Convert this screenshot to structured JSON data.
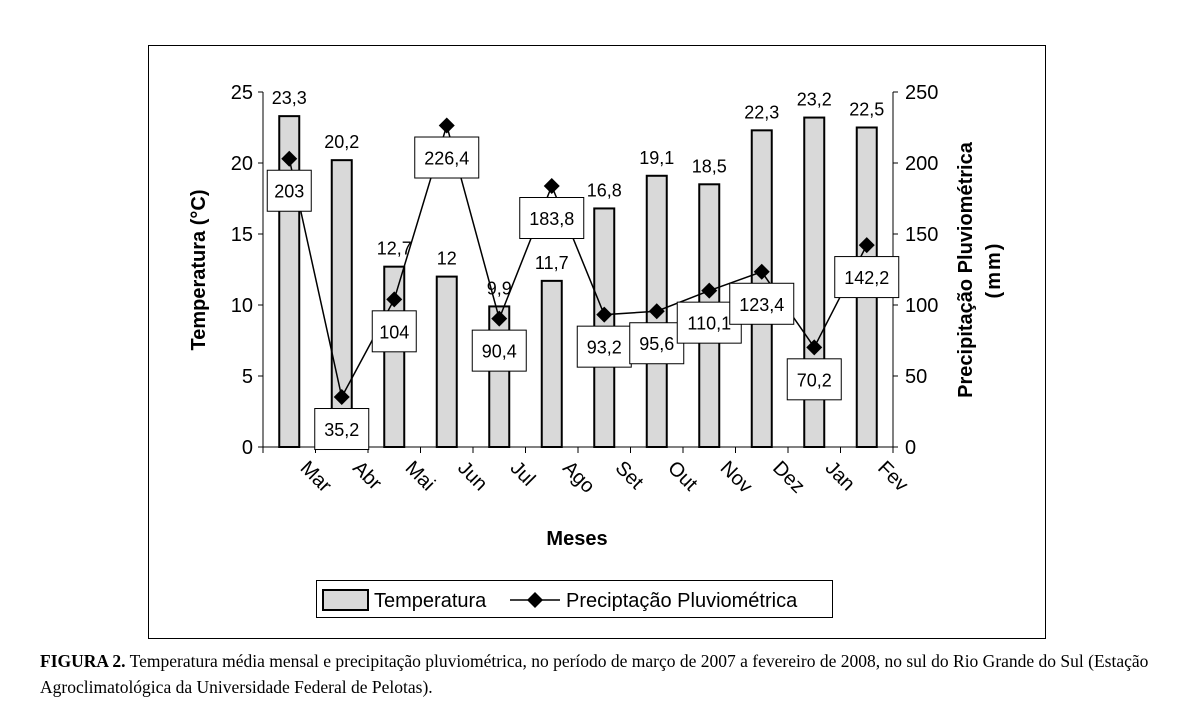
{
  "chart_data": {
    "type": "bar+line",
    "categories": [
      "Mar",
      "Abr",
      "Mai",
      "Jun",
      "Jul",
      "Ago",
      "Set",
      "Out",
      "Nov",
      "Dez",
      "Jan",
      "Fev"
    ],
    "series": [
      {
        "name": "Temperatura",
        "type": "bar",
        "axis": "left",
        "values": [
          23.3,
          20.2,
          12.7,
          12,
          9.9,
          11.7,
          16.8,
          19.1,
          18.5,
          22.3,
          23.2,
          22.5
        ],
        "labels": [
          "23,3",
          "20,2",
          "12,7",
          "12",
          "9,9",
          "11,7",
          "16,8",
          "19,1",
          "18,5",
          "22,3",
          "23,2",
          "22,5"
        ]
      },
      {
        "name": "Preciptação Pluviométrica",
        "type": "line",
        "axis": "right",
        "values": [
          203,
          35.2,
          104,
          226.4,
          90.4,
          183.8,
          93.2,
          95.6,
          110.1,
          123.4,
          70.2,
          142.2
        ],
        "labels": [
          "203",
          "35,2",
          "104",
          "226,4",
          "90,4",
          "183,8",
          "93,2",
          "95,6",
          "110,1",
          "123,4",
          "70,2",
          "142,2"
        ]
      }
    ],
    "xlabel": "Meses",
    "ylabel": "Temperatura (°C)",
    "y2label": [
      "Precipitação Pluviométrica",
      "(mm)"
    ],
    "ylim": [
      0,
      25
    ],
    "y2lim": [
      0,
      250
    ],
    "yticks": [
      "0",
      "5",
      "10",
      "15",
      "20",
      "25"
    ],
    "y2ticks": [
      "0",
      "50",
      "100",
      "150",
      "200",
      "250"
    ],
    "grid": false,
    "legend": "bottom",
    "colors": {
      "bar": "#d9d9d9",
      "line": "#000000"
    }
  },
  "caption": {
    "label": "FIGURA 2.",
    "text": " Temperatura média mensal e precipitação pluviométrica, no período de março de 2007 a fevereiro de 2008, no sul do Rio Grande do Sul (Estação Agroclimatológica da Universidade Federal de Pelotas)."
  }
}
